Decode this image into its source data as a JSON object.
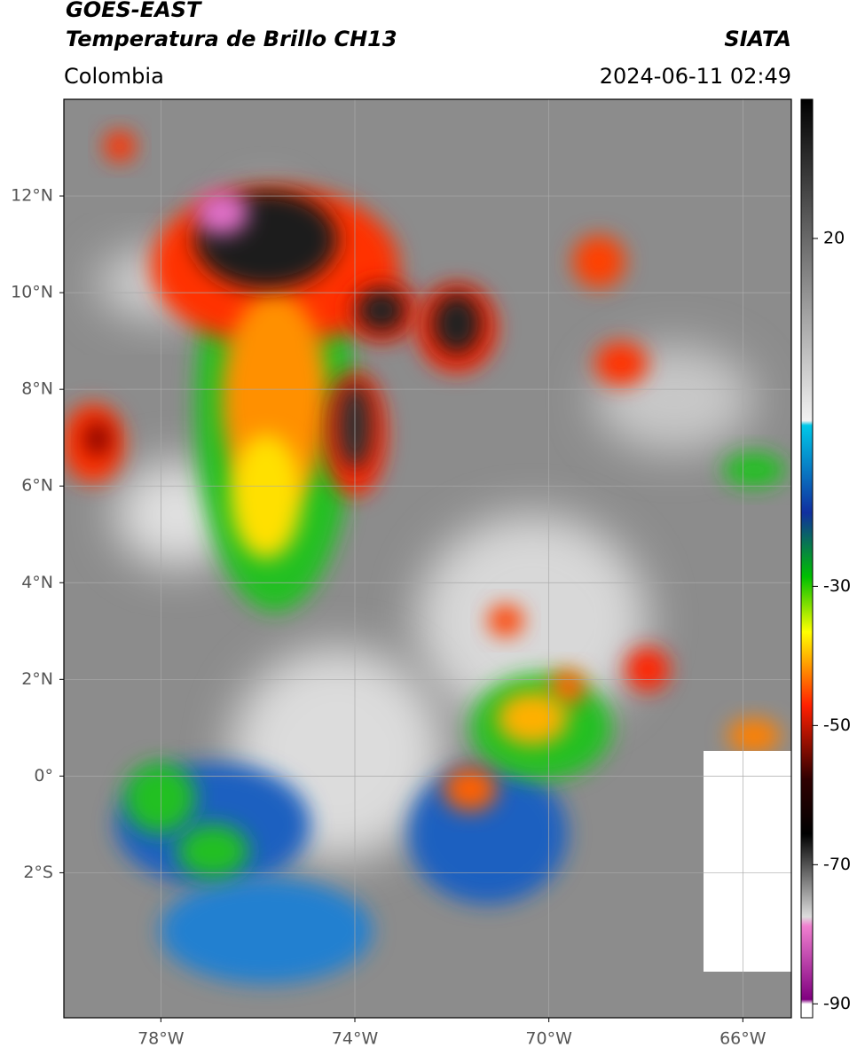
{
  "header": {
    "title": "GOES-EAST",
    "subtitle": "Temperatura de Brillo CH13",
    "source": "SIATA",
    "region": "Colombia",
    "datetime": "2024-06-11 02:49"
  },
  "map": {
    "xlim": [
      -80,
      -65
    ],
    "ylim": [
      -5,
      14
    ],
    "xticks": [
      {
        "value": -78,
        "label": "78°W"
      },
      {
        "value": -74,
        "label": "74°W"
      },
      {
        "value": -70,
        "label": "70°W"
      },
      {
        "value": -66,
        "label": "66°W"
      }
    ],
    "yticks": [
      {
        "value": 12,
        "label": "12°N"
      },
      {
        "value": 10,
        "label": "10°N"
      },
      {
        "value": 8,
        "label": "8°N"
      },
      {
        "value": 6,
        "label": "6°N"
      },
      {
        "value": 4,
        "label": "4°N"
      },
      {
        "value": 2,
        "label": "2°N"
      },
      {
        "value": 0,
        "label": "0°"
      },
      {
        "value": -2,
        "label": "2°S"
      }
    ],
    "colorbar": {
      "lim": [
        -92,
        40
      ],
      "ticks": [
        20,
        -30,
        -50,
        -70,
        -90
      ]
    }
  }
}
